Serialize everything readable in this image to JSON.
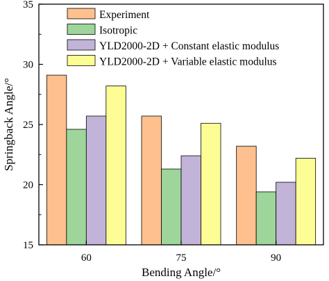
{
  "chart_data": {
    "type": "bar",
    "xlabel": "Bending Angle/°",
    "ylabel": "Springback Angle/°",
    "ylim": [
      15,
      35
    ],
    "yticks": [
      15,
      20,
      25,
      30,
      35
    ],
    "categories": [
      "60",
      "75",
      "90"
    ],
    "series": [
      {
        "name": "Experiment",
        "color": "#FDC08E",
        "values": [
          29.1,
          25.7,
          23.2
        ]
      },
      {
        "name": "Isotropic",
        "color": "#9DD59A",
        "values": [
          24.6,
          21.3,
          19.4
        ]
      },
      {
        "name": "YLD2000-2D + Constant elastic modulus",
        "color": "#C1B4D8",
        "values": [
          25.7,
          22.4,
          20.2
        ]
      },
      {
        "name": "YLD2000-2D + Variable elastic modulus",
        "color": "#FDFD96",
        "values": [
          28.2,
          25.1,
          22.2
        ]
      }
    ],
    "grid": false,
    "legend_position": "top-left"
  }
}
